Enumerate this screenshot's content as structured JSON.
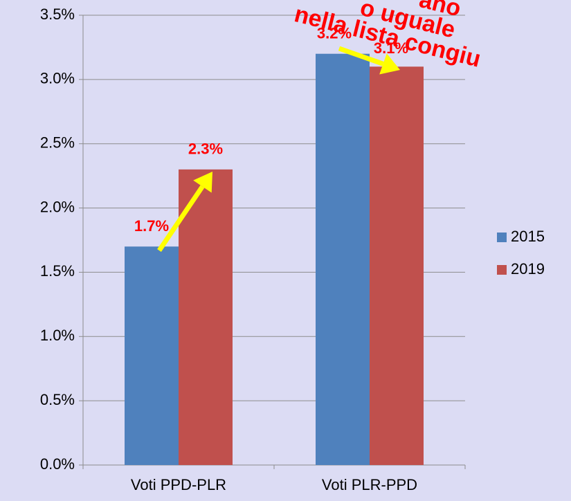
{
  "chart_data": {
    "type": "bar",
    "categories": [
      "Voti PPD-PLR",
      "Voti PLR-PPD"
    ],
    "series": [
      {
        "name": "2015",
        "color": "#4f81bd",
        "values": [
          1.7,
          3.2
        ],
        "value_labels": [
          "1.7%",
          "3.2%"
        ]
      },
      {
        "name": "2019",
        "color": "#c0504d",
        "values": [
          2.3,
          3.1
        ],
        "value_labels": [
          "2.3%",
          "3.1%"
        ]
      }
    ],
    "ylim": [
      0,
      3.5
    ],
    "yticks": [
      {
        "value": 0,
        "label": "0.0%"
      },
      {
        "value": 0.5,
        "label": "0.5%"
      },
      {
        "value": 1,
        "label": "1.0%"
      },
      {
        "value": 1.5,
        "label": "1.5%"
      },
      {
        "value": 2,
        "label": "2.0%"
      },
      {
        "value": 2.5,
        "label": "2.5%"
      },
      {
        "value": 3,
        "label": "3.0%"
      },
      {
        "value": 3.5,
        "label": "3.5%"
      }
    ],
    "grid": true,
    "legend": "right",
    "annotations": [
      "ano",
      "o uguale",
      "nella lista congiu"
    ]
  }
}
